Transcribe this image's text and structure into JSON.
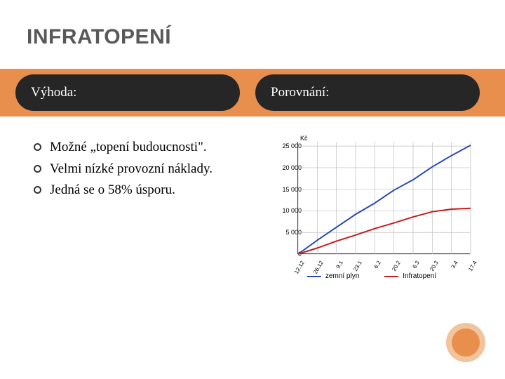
{
  "title": "INFRATOPENÍ",
  "headers": {
    "left": "Výhoda:",
    "right": "Porovnání:"
  },
  "bullets": [
    "Možné „topení budoucnosti\".",
    "Velmi nízké provozní náklady.",
    "Jedná se o 58% úsporu."
  ],
  "chart": {
    "type": "line",
    "unit_label": "Kč",
    "ylim": [
      0,
      26000
    ],
    "yticks": [
      0,
      5000,
      10000,
      15000,
      20000,
      25000
    ],
    "ytick_labels": [
      "0",
      "5 000",
      "10 000",
      "15 000",
      "20 000",
      "25 000"
    ],
    "xlabels": [
      "12.12",
      "26.12",
      "9.1",
      "23.1",
      "6.2",
      "20.2",
      "6.3",
      "20.3",
      "3.4",
      "17.4"
    ],
    "grid_color": "#bfbfbf",
    "background_color": "#ffffff",
    "series": [
      {
        "name": "zemní plyn",
        "color": "#2a4ab0",
        "values": [
          0,
          3200,
          6200,
          9200,
          11800,
          14800,
          17200,
          20200,
          22800,
          25200
        ]
      },
      {
        "name": "Infratopení",
        "color": "#c02020",
        "values": [
          0,
          1400,
          3000,
          4400,
          5900,
          7200,
          8600,
          9800,
          10400,
          10600
        ]
      }
    ],
    "line_width": 2,
    "title_fontsize": 9,
    "label_fontsize": 9,
    "legend_fontsize": 10
  },
  "colors": {
    "band": "#e98f4e",
    "pill_bg": "#262626",
    "pill_text": "#ffffff",
    "title_text": "#595959",
    "circle_outer": "#f2c49d",
    "circle_inner": "#e98f4e"
  }
}
